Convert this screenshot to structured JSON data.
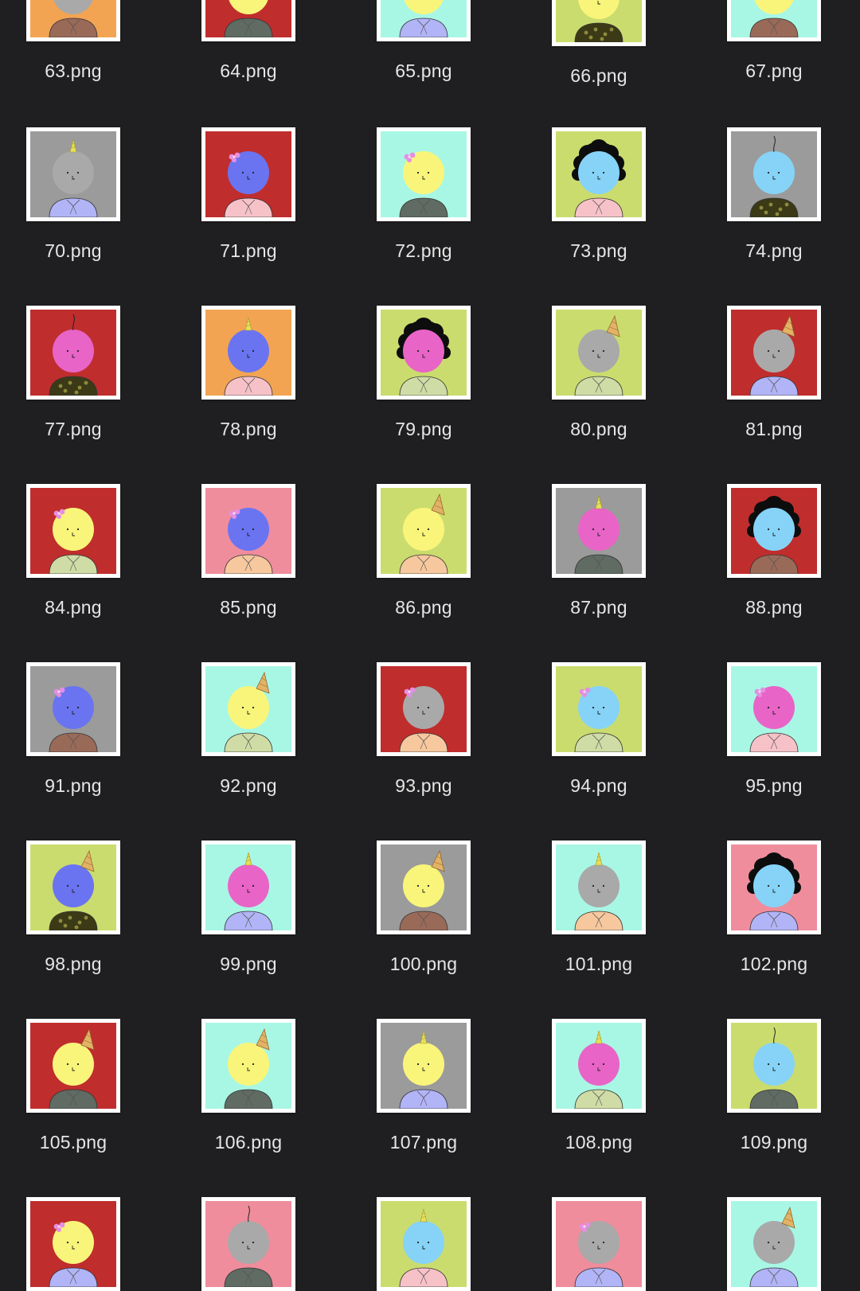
{
  "files": [
    {
      "name": "63.png",
      "bg": "orange",
      "face": "gray",
      "shirt": "brown",
      "acc": "none",
      "clip_top": true
    },
    {
      "name": "64.png",
      "bg": "red",
      "face": "yellow",
      "shirt": "darkgray",
      "acc": "none",
      "clip_top": true
    },
    {
      "name": "65.png",
      "bg": "mint",
      "face": "yellow",
      "shirt": "lavender",
      "acc": "none",
      "clip_top": true
    },
    {
      "name": "66.png",
      "bg": "lime",
      "face": "yellow",
      "shirt": "camo",
      "acc": "none",
      "clip_top": true,
      "selected_offset": true
    },
    {
      "name": "67.png",
      "bg": "mint",
      "face": "yellow",
      "shirt": "brown",
      "acc": "none",
      "clip_top": true
    },
    {
      "name": "70.png",
      "bg": "gray",
      "face": "gray",
      "shirt": "lavender",
      "acc": "unicorn"
    },
    {
      "name": "71.png",
      "bg": "red",
      "face": "blue",
      "shirt": "pink",
      "acc": "bow"
    },
    {
      "name": "72.png",
      "bg": "mint",
      "face": "yellow",
      "shirt": "darkgray",
      "acc": "bow"
    },
    {
      "name": "73.png",
      "bg": "lime",
      "face": "skyblue",
      "shirt": "pink",
      "acc": "afro"
    },
    {
      "name": "74.png",
      "bg": "gray",
      "face": "skyblue",
      "shirt": "camo",
      "acc": "sprout"
    },
    {
      "name": "77.png",
      "bg": "red",
      "face": "magenta",
      "shirt": "camo",
      "acc": "sprout"
    },
    {
      "name": "78.png",
      "bg": "orange",
      "face": "blue",
      "shirt": "pink",
      "acc": "unicorn"
    },
    {
      "name": "79.png",
      "bg": "lime",
      "face": "magenta",
      "shirt": "sage",
      "acc": "afro"
    },
    {
      "name": "80.png",
      "bg": "lime",
      "face": "gray",
      "shirt": "sage",
      "acc": "cone"
    },
    {
      "name": "81.png",
      "bg": "red",
      "face": "gray",
      "shirt": "lavender",
      "acc": "cone"
    },
    {
      "name": "84.png",
      "bg": "red",
      "face": "yellow",
      "shirt": "sage",
      "acc": "bow"
    },
    {
      "name": "85.png",
      "bg": "pink",
      "face": "blue",
      "shirt": "peach",
      "acc": "bow"
    },
    {
      "name": "86.png",
      "bg": "lime",
      "face": "yellow",
      "shirt": "peach",
      "acc": "cone"
    },
    {
      "name": "87.png",
      "bg": "gray",
      "face": "magenta",
      "shirt": "darkgray",
      "acc": "unicorn"
    },
    {
      "name": "88.png",
      "bg": "red",
      "face": "skyblue",
      "shirt": "brown",
      "acc": "afro"
    },
    {
      "name": "91.png",
      "bg": "gray",
      "face": "blue",
      "shirt": "brown",
      "acc": "bow"
    },
    {
      "name": "92.png",
      "bg": "mint",
      "face": "yellow",
      "shirt": "sage",
      "acc": "cone"
    },
    {
      "name": "93.png",
      "bg": "red",
      "face": "gray",
      "shirt": "peach",
      "acc": "bow"
    },
    {
      "name": "94.png",
      "bg": "lime",
      "face": "skyblue",
      "shirt": "sage",
      "acc": "bow"
    },
    {
      "name": "95.png",
      "bg": "mint",
      "face": "magenta",
      "shirt": "pink",
      "acc": "bow"
    },
    {
      "name": "98.png",
      "bg": "lime",
      "face": "blue",
      "shirt": "camo",
      "acc": "cone"
    },
    {
      "name": "99.png",
      "bg": "mint",
      "face": "magenta",
      "shirt": "lavender",
      "acc": "unicorn"
    },
    {
      "name": "100.png",
      "bg": "gray",
      "face": "yellow",
      "shirt": "brown",
      "acc": "cone"
    },
    {
      "name": "101.png",
      "bg": "mint",
      "face": "gray",
      "shirt": "peach",
      "acc": "unicorn"
    },
    {
      "name": "102.png",
      "bg": "pink",
      "face": "skyblue",
      "shirt": "lavender",
      "acc": "afro"
    },
    {
      "name": "105.png",
      "bg": "red",
      "face": "yellow",
      "shirt": "darkgray",
      "acc": "cone"
    },
    {
      "name": "106.png",
      "bg": "mint",
      "face": "yellow",
      "shirt": "darkgray",
      "acc": "cone"
    },
    {
      "name": "107.png",
      "bg": "gray",
      "face": "yellow",
      "shirt": "lavender",
      "acc": "unicorn"
    },
    {
      "name": "108.png",
      "bg": "mint",
      "face": "magenta",
      "shirt": "sage",
      "acc": "unicorn"
    },
    {
      "name": "109.png",
      "bg": "lime",
      "face": "skyblue",
      "shirt": "darkgray",
      "acc": "sprout"
    },
    {
      "name": "",
      "bg": "red",
      "face": "yellow",
      "shirt": "lavender",
      "acc": "bow",
      "clip_bottom": true
    },
    {
      "name": "",
      "bg": "pink",
      "face": "gray",
      "shirt": "darkgray",
      "acc": "sprout",
      "clip_bottom": true
    },
    {
      "name": "",
      "bg": "lime",
      "face": "skyblue",
      "shirt": "pink",
      "acc": "unicorn",
      "clip_bottom": true
    },
    {
      "name": "",
      "bg": "pink",
      "face": "gray",
      "shirt": "lavender",
      "acc": "bow",
      "clip_bottom": true
    },
    {
      "name": "",
      "bg": "mint",
      "face": "gray",
      "shirt": "lavender",
      "acc": "cone",
      "clip_bottom": true
    }
  ],
  "palette": {
    "bg": {
      "orange": "#f2a453",
      "red": "#c02d2d",
      "mint": "#a8f7e4",
      "lime": "#cbdc6e",
      "gray": "#9b9b9b",
      "pink": "#ef8d9d"
    },
    "face": {
      "gray": "#a9a9a9",
      "yellow": "#f9f57a",
      "blue": "#6a74f0",
      "skyblue": "#86d3f7",
      "magenta": "#e864c7"
    },
    "shirt": {
      "brown": "#9a6a58",
      "darkgray": "#5f6b63",
      "lavender": "#b1b4f6",
      "camo": "#3c3a16",
      "pink": "#f6c2c8",
      "sage": "#cfdca5",
      "peach": "#f7c89e"
    }
  }
}
